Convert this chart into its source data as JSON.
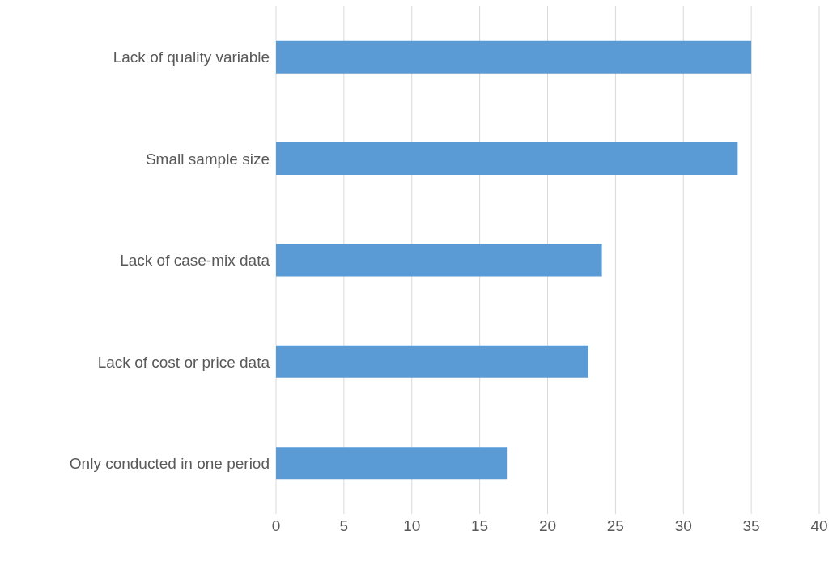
{
  "chart_data": {
    "type": "bar",
    "orientation": "horizontal",
    "categories": [
      "Lack of quality variable",
      "Small sample size",
      "Lack of case-mix data",
      "Lack of cost or price data",
      "Only conducted in one period"
    ],
    "values": [
      35,
      34,
      24,
      23,
      17
    ],
    "color": "#5b9bd5",
    "xlim": [
      0,
      40
    ],
    "xticks": [
      0,
      5,
      10,
      15,
      20,
      25,
      30,
      35,
      40
    ],
    "grid": "x"
  }
}
